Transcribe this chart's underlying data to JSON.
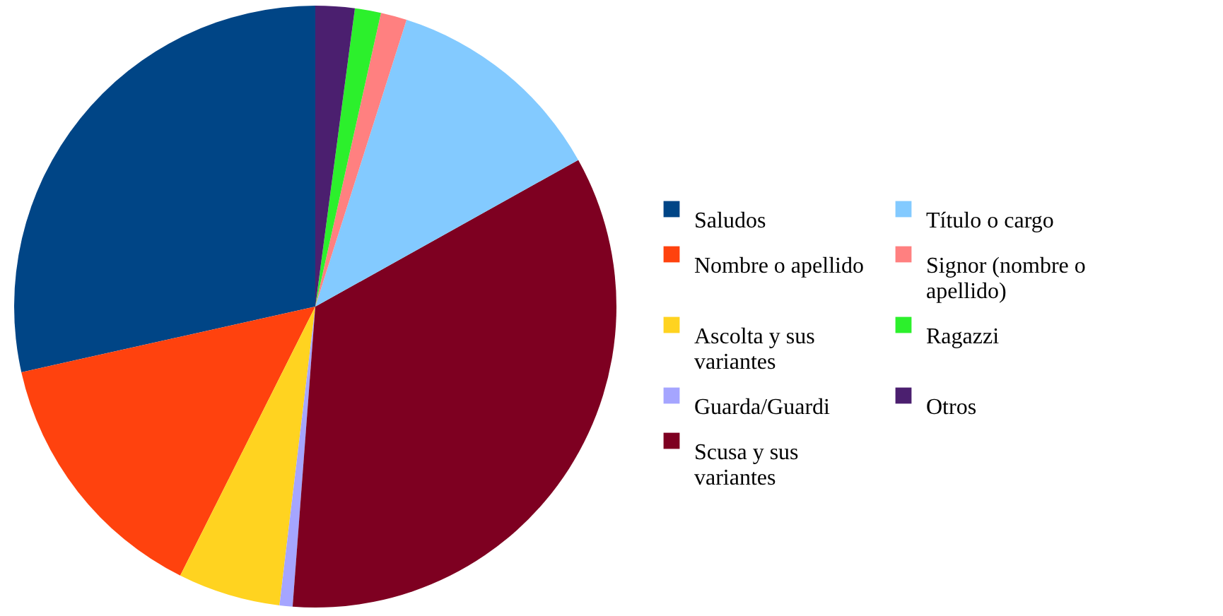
{
  "chart_data": {
    "type": "pie",
    "categories": [
      "Saludos",
      "Nombre o apellido",
      "Ascolta y sus variantes",
      "Guarda/Guardi",
      "Scusa y sus variantes",
      "Título o cargo",
      "Signor (nombre o apellido)",
      "Ragazzi",
      "Otros"
    ],
    "values": [
      28.5,
      14.1,
      5.5,
      0.7,
      34.3,
      12.0,
      1.4,
      1.4,
      2.1
    ],
    "colors": [
      "#004586",
      "#ff420e",
      "#ffd320",
      "#a5a5ff",
      "#7e0021",
      "#83caff",
      "#ff8080",
      "#2cf02c",
      "#4b1f6f"
    ],
    "legend": "right"
  }
}
